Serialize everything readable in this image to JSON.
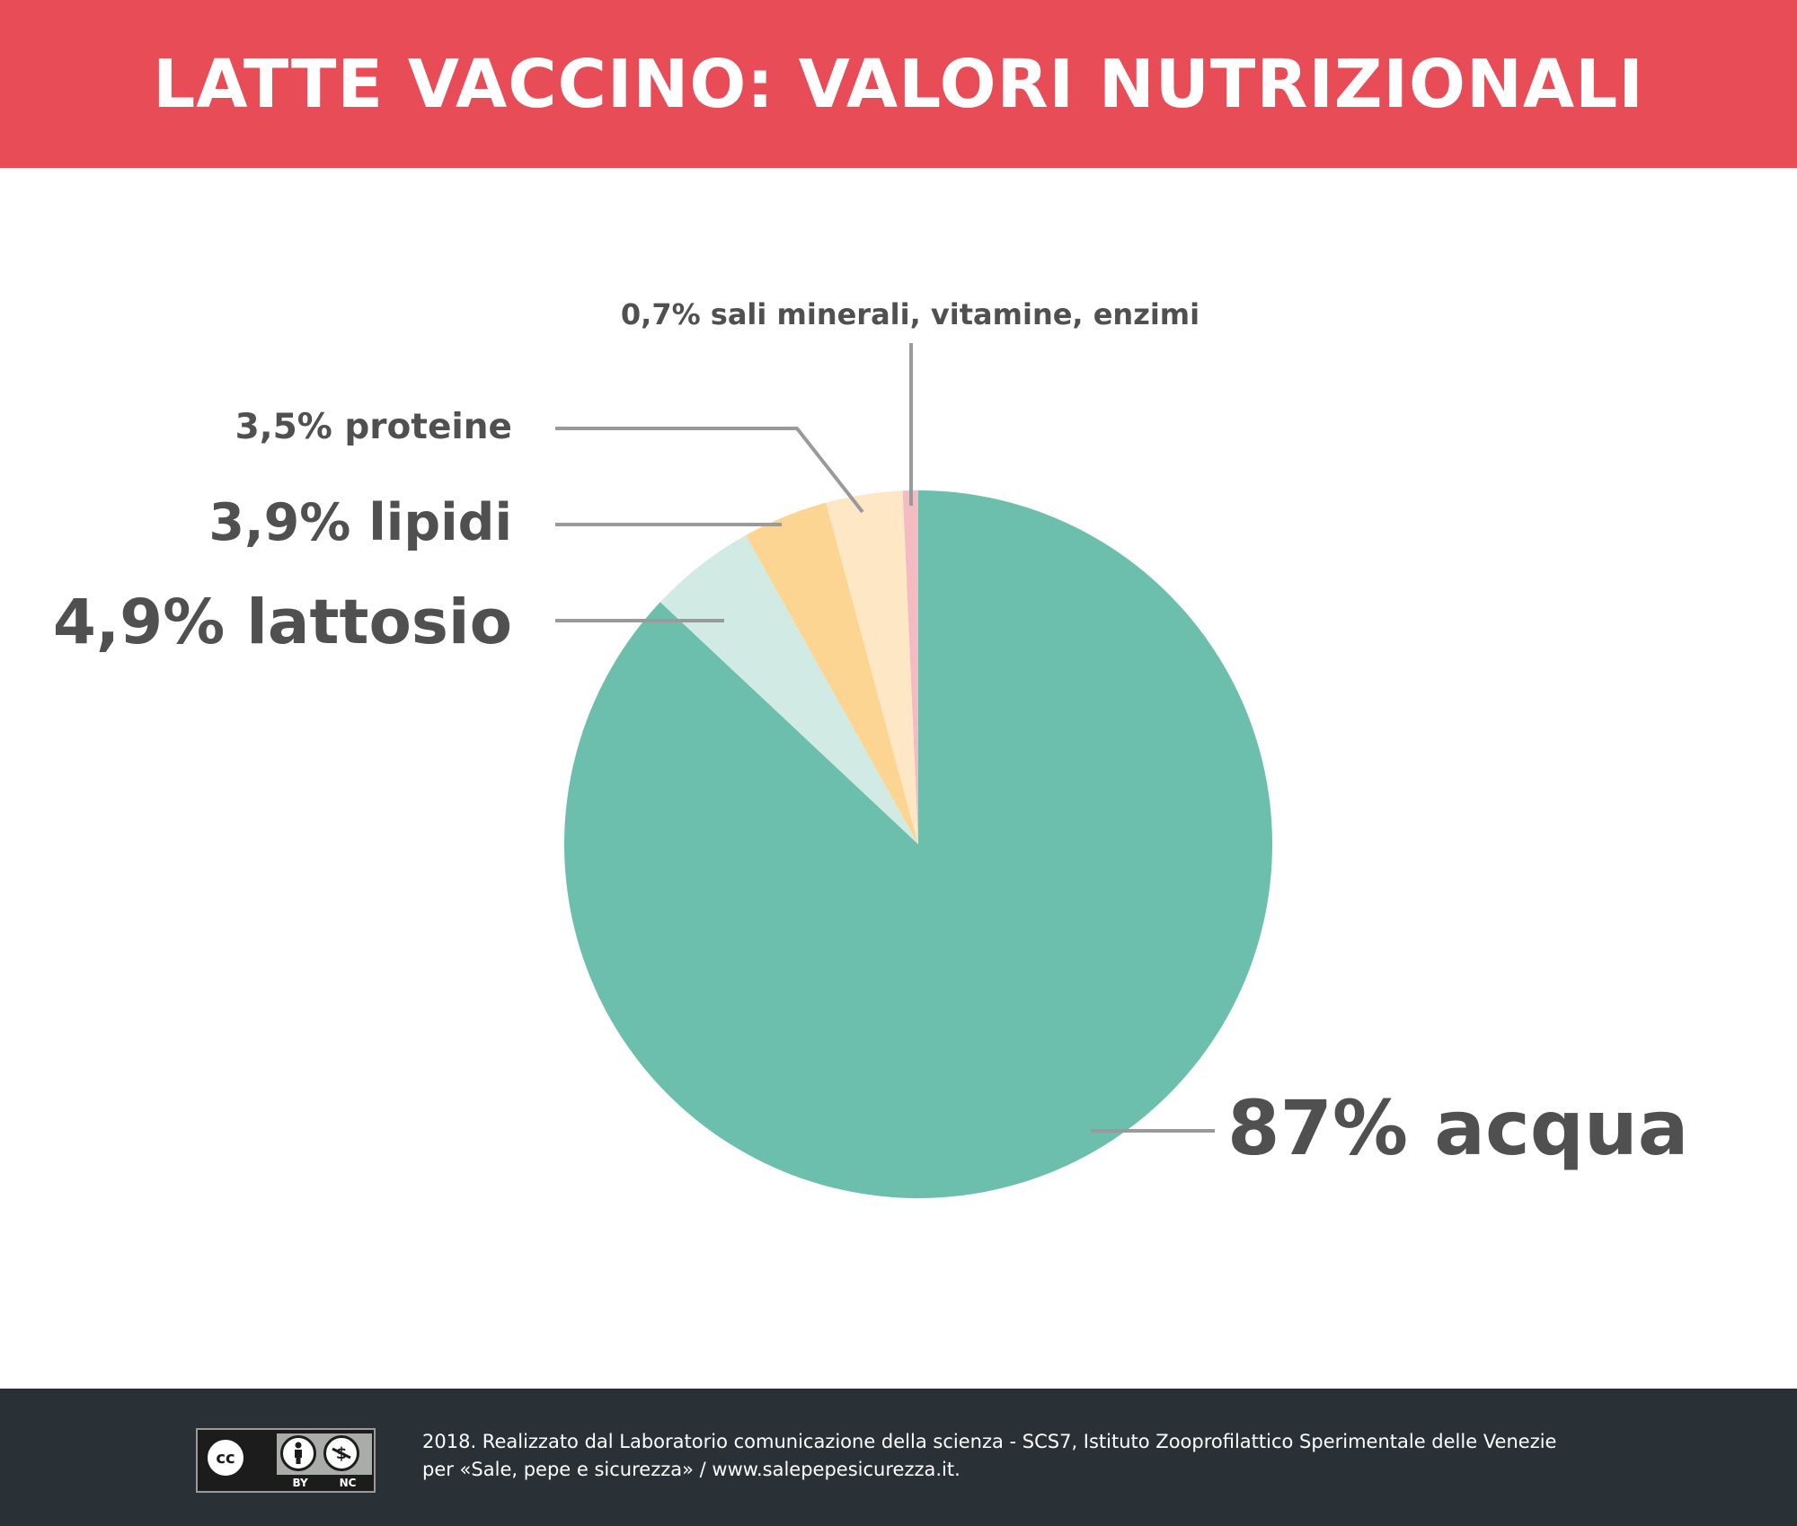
{
  "header": {
    "title": "LATTE VACCINO: VALORI NUTRIZIONALI"
  },
  "colors": {
    "header_bg": "#e84c57",
    "footer_bg": "#293136",
    "label_text": "#505050",
    "leader_line": "#9a9a9a",
    "slice_acqua": "#6cbfad",
    "slice_lattosio": "#d1eae3",
    "slice_lipidi": "#fcd592",
    "slice_proteine": "#fee7c5",
    "slice_sali": "#f4bbc2"
  },
  "chart_data": {
    "type": "pie",
    "start": "12 o'clock",
    "direction": "clockwise",
    "slices": [
      {
        "label": "87% acqua",
        "value": 87,
        "color": "#6cbfad"
      },
      {
        "label": "4,9% lattosio",
        "value": 4.9,
        "color": "#d1eae3"
      },
      {
        "label": "3,9% lipidi",
        "value": 3.9,
        "color": "#fcd592"
      },
      {
        "label": "3,5% proteine",
        "value": 3.5,
        "color": "#fee7c5"
      },
      {
        "label": "0,7% sali minerali, vitamine, enzimi",
        "value": 0.7,
        "color": "#f4bbc2"
      }
    ]
  },
  "footer": {
    "license": {
      "cc": "cc",
      "by": "BY",
      "nc": "NC",
      "attribution_icon": "person-icon",
      "noncommercial_icon": "no-dollar-icon"
    },
    "credit_line1": "2018. Realizzato dal Laboratorio comunicazione della scienza - SCS7, Istituto Zooprofilattico Sperimentale delle Venezie",
    "credit_line2": "per «Sale, pepe e sicurezza» / www.salepepesicurezza.it."
  }
}
